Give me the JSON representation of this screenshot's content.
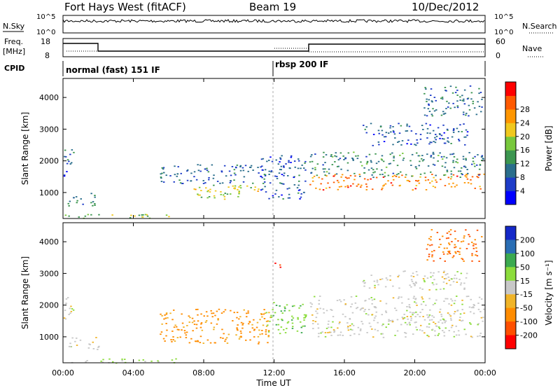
{
  "header": {
    "station": "Fort Hays West (fitACF)",
    "beam": "Beam 19",
    "date": "10/Dec/2012"
  },
  "status_panels": {
    "nsky_label": "N.Sky",
    "nsearch_label": "N.Search",
    "noise_ticks": [
      "10^5",
      "10^0"
    ],
    "freq_label_top": "Freq.",
    "freq_label_unit": "[MHz]",
    "freq_ticks": [
      "18",
      "8"
    ],
    "nave_label": "Nave",
    "nave_ticks": [
      "60",
      "0"
    ],
    "cpid_label": "CPID",
    "cpid_modes": [
      {
        "name": "normal (fast) 151 IF",
        "start": "00:00",
        "end": "12:00"
      },
      {
        "name": "rbsp 200 IF",
        "start": "12:00",
        "end": "00:00"
      }
    ]
  },
  "axes": {
    "ylabel": "Slant Range [km]",
    "xlabel": "Time UT",
    "x_ticks": [
      "00:00",
      "04:00",
      "08:00",
      "12:00",
      "16:00",
      "20:00",
      "00:00"
    ],
    "y_ticks": [
      "1000",
      "2000",
      "3000",
      "4000"
    ]
  },
  "colorbars": {
    "power": {
      "label": "Power [dB]",
      "ticks": [
        "4",
        "8",
        "12",
        "16",
        "20",
        "24",
        "28"
      ],
      "colors": [
        "#0000ff",
        "#1e3cc8",
        "#2a6e8c",
        "#3c9650",
        "#78c83c",
        "#f0c81e",
        "#ff9600",
        "#ff5a00",
        "#ff0000"
      ]
    },
    "velocity": {
      "label": "Velocity [m s⁻¹]",
      "ticks": [
        "200",
        "100",
        "50",
        "15",
        "-15",
        "-50",
        "-100",
        "-200"
      ],
      "colors": [
        "#1428c8",
        "#2a6eb4",
        "#3caa50",
        "#8cdc3c",
        "#c8c8c8",
        "#f0b428",
        "#ff8c00",
        "#ff5000",
        "#ff0000"
      ]
    }
  },
  "chart_data": [
    {
      "type": "heatmap",
      "name": "power",
      "x_range": [
        "00:00",
        "24:00"
      ],
      "ylim": [
        180,
        4600
      ],
      "scatter_features": [
        {
          "t0": 0.0,
          "t1": 6.5,
          "r0": 190,
          "r1": 330,
          "value_db": 16
        },
        {
          "t0": 0.0,
          "t1": 0.6,
          "r0": 1500,
          "r1": 2400,
          "value_db": 6
        },
        {
          "t0": 0.2,
          "t1": 2.0,
          "r0": 600,
          "r1": 1000,
          "value_db": 8
        },
        {
          "t0": 7.3,
          "t1": 11.5,
          "r0": 800,
          "r1": 1250,
          "value_db": 18
        },
        {
          "t0": 5.5,
          "t1": 11.8,
          "r0": 1300,
          "r1": 1900,
          "value_db": 7
        },
        {
          "t0": 11.2,
          "t1": 13.8,
          "r0": 800,
          "r1": 2200,
          "value_db": 6
        },
        {
          "t0": 14.0,
          "t1": 23.9,
          "r0": 1100,
          "r1": 1600,
          "value_db": 26
        },
        {
          "t0": 14.0,
          "t1": 23.9,
          "r0": 1500,
          "r1": 2300,
          "value_db": 10
        },
        {
          "t0": 17.0,
          "t1": 23.0,
          "r0": 2500,
          "r1": 3200,
          "value_db": 6
        },
        {
          "t0": 20.5,
          "t1": 23.8,
          "r0": 3400,
          "r1": 4400,
          "value_db": 8
        }
      ]
    },
    {
      "type": "heatmap",
      "name": "velocity",
      "x_range": [
        "00:00",
        "24:00"
      ],
      "ylim": [
        180,
        4600
      ],
      "scatter_features": [
        {
          "t0": 0.0,
          "t1": 6.5,
          "r0": 190,
          "r1": 330,
          "value_ms": 20
        },
        {
          "t0": 0.2,
          "t1": 2.0,
          "r0": 600,
          "r1": 1000,
          "value_ms": 0
        },
        {
          "t0": 0.0,
          "t1": 0.6,
          "r0": 1500,
          "r1": 2400,
          "value_ms": 0
        },
        {
          "t0": 5.5,
          "t1": 11.8,
          "r0": 800,
          "r1": 1900,
          "value_ms": -60
        },
        {
          "t0": 11.5,
          "t1": 13.8,
          "r0": 1100,
          "r1": 2100,
          "value_ms": 40
        },
        {
          "t0": 14.0,
          "t1": 23.9,
          "r0": 1000,
          "r1": 2300,
          "value_ms": 0
        },
        {
          "t0": 17.0,
          "t1": 23.0,
          "r0": 2500,
          "r1": 3100,
          "value_ms": 0
        },
        {
          "t0": 12.0,
          "t1": 12.4,
          "r0": 3200,
          "r1": 3450,
          "value_ms": -200
        },
        {
          "t0": 20.5,
          "t1": 23.8,
          "r0": 3400,
          "r1": 4400,
          "value_ms": -100
        }
      ]
    }
  ]
}
